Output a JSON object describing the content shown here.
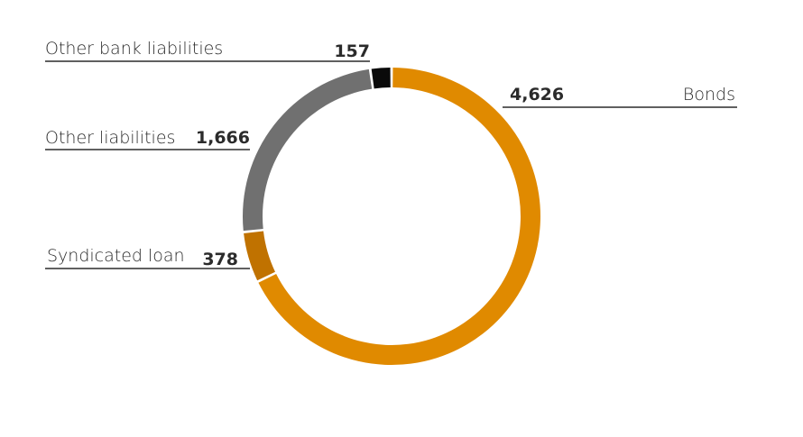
{
  "chart_data": {
    "type": "pie",
    "style": "donut",
    "legend": "none",
    "slices": [
      {
        "label": "Bonds",
        "value": 4626,
        "value_label": "4,626",
        "color": "#e08a00"
      },
      {
        "label": "Syndicated loan",
        "value": 378,
        "value_label": "378",
        "color": "#c07200"
      },
      {
        "label": "Other liabilities",
        "value": 1666,
        "value_label": "1,666",
        "color": "#707070"
      },
      {
        "label": "Other bank liabilities",
        "value": 157,
        "value_label": "157",
        "color": "#0a0a0a"
      }
    ]
  }
}
